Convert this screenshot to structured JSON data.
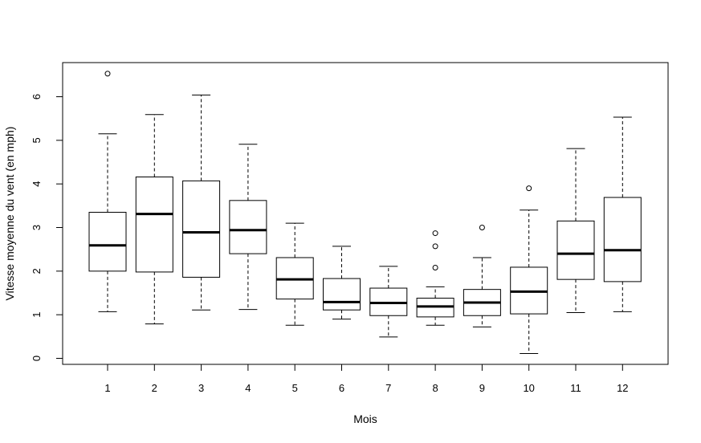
{
  "chart_data": {
    "type": "boxplot",
    "title": "",
    "xlabel": "Mois",
    "ylabel": "Vitesse moyenne du vent (en mph)",
    "ylim": [
      -0.15,
      6.85
    ],
    "y_ticks": [
      0,
      1,
      2,
      3,
      4,
      5,
      6
    ],
    "grid": false,
    "categories": [
      "1",
      "2",
      "3",
      "4",
      "5",
      "6",
      "7",
      "8",
      "9",
      "10",
      "11",
      "12"
    ],
    "boxes": [
      {
        "category": "1",
        "whisker_low": 1.07,
        "q1": 2.0,
        "median": 2.59,
        "q3": 3.35,
        "whisker_high": 5.15,
        "outliers": [
          6.53
        ]
      },
      {
        "category": "2",
        "whisker_low": 0.79,
        "q1": 1.98,
        "median": 3.31,
        "q3": 4.16,
        "whisker_high": 5.59,
        "outliers": []
      },
      {
        "category": "3",
        "whisker_low": 1.11,
        "q1": 1.86,
        "median": 2.89,
        "q3": 4.07,
        "whisker_high": 6.04,
        "outliers": []
      },
      {
        "category": "4",
        "whisker_low": 1.12,
        "q1": 2.4,
        "median": 2.94,
        "q3": 3.62,
        "whisker_high": 4.91,
        "outliers": []
      },
      {
        "category": "5",
        "whisker_low": 0.76,
        "q1": 1.36,
        "median": 1.81,
        "q3": 2.31,
        "whisker_high": 3.1,
        "outliers": []
      },
      {
        "category": "6",
        "whisker_low": 0.9,
        "q1": 1.11,
        "median": 1.29,
        "q3": 1.83,
        "whisker_high": 2.57,
        "outliers": []
      },
      {
        "category": "7",
        "whisker_low": 0.49,
        "q1": 0.98,
        "median": 1.27,
        "q3": 1.61,
        "whisker_high": 2.11,
        "outliers": []
      },
      {
        "category": "8",
        "whisker_low": 0.76,
        "q1": 0.95,
        "median": 1.19,
        "q3": 1.38,
        "whisker_high": 1.64,
        "outliers": [
          2.08,
          2.57,
          2.87
        ]
      },
      {
        "category": "9",
        "whisker_low": 0.72,
        "q1": 0.98,
        "median": 1.28,
        "q3": 1.58,
        "whisker_high": 2.31,
        "outliers": [
          3.0
        ]
      },
      {
        "category": "10",
        "whisker_low": 0.11,
        "q1": 1.02,
        "median": 1.53,
        "q3": 2.09,
        "whisker_high": 3.4,
        "outliers": [
          3.9
        ]
      },
      {
        "category": "11",
        "whisker_low": 1.05,
        "q1": 1.81,
        "median": 2.4,
        "q3": 3.15,
        "whisker_high": 4.81,
        "outliers": []
      },
      {
        "category": "12",
        "whisker_low": 1.07,
        "q1": 1.76,
        "median": 2.48,
        "q3": 3.69,
        "whisker_high": 5.53,
        "outliers": []
      }
    ]
  }
}
